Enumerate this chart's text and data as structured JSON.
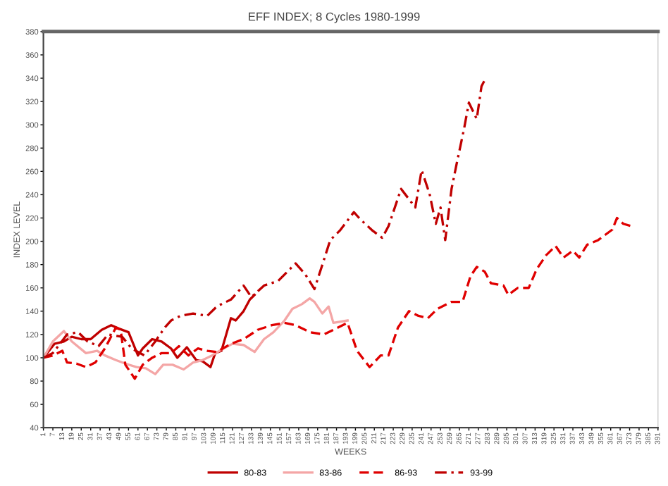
{
  "chart_data": {
    "type": "line",
    "title": "EFF INDEX; 8 Cycles 1980-1999",
    "xlabel": "WEEKS",
    "ylabel": "INDEX LEVEL",
    "xlim": [
      1,
      391
    ],
    "xticks": [
      1,
      7,
      13,
      19,
      25,
      31,
      37,
      43,
      49,
      55,
      61,
      67,
      73,
      79,
      85,
      91,
      97,
      103,
      109,
      115,
      121,
      127,
      133,
      139,
      145,
      151,
      157,
      163,
      169,
      175,
      181,
      187,
      193,
      199,
      205,
      211,
      217,
      223,
      229,
      235,
      241,
      247,
      253,
      259,
      265,
      271,
      277,
      283,
      289,
      295,
      301,
      307,
      313,
      319,
      325,
      331,
      337,
      343,
      349,
      355,
      361,
      367,
      373,
      379,
      385,
      391
    ],
    "ylim": [
      40,
      380
    ],
    "yticks": [
      40,
      60,
      80,
      100,
      120,
      140,
      160,
      180,
      200,
      220,
      240,
      260,
      280,
      300,
      320,
      340,
      360,
      380
    ],
    "grid": false,
    "legend": "bottom",
    "series": [
      {
        "name": "80-83",
        "color": "#c00000",
        "line_style": "solid",
        "x": [
          1,
          8,
          14,
          19,
          25,
          31,
          38,
          44,
          49,
          55,
          61,
          64,
          70,
          76,
          82,
          86,
          92,
          98,
          102,
          107,
          110,
          114,
          117,
          120,
          123,
          128,
          132,
          135
        ],
        "values": [
          100,
          112,
          114,
          118,
          116,
          116,
          124,
          128,
          125,
          122,
          102,
          108,
          116,
          114,
          108,
          100,
          109,
          98,
          97,
          92,
          104,
          106,
          120,
          134,
          132,
          140,
          150,
          154
        ]
      },
      {
        "name": "83-86",
        "color": "#f4a6a6",
        "line_style": "solid",
        "x": [
          1,
          7,
          14,
          19,
          28,
          35,
          40,
          47,
          53,
          60,
          66,
          72,
          77,
          83,
          90,
          96,
          102,
          108,
          114,
          121,
          128,
          135,
          141,
          147,
          154,
          159,
          165,
          170,
          173,
          178,
          182,
          185,
          194
        ],
        "values": [
          100,
          114,
          123,
          114,
          104,
          106,
          102,
          98,
          95,
          92,
          91,
          86,
          94,
          94,
          90,
          96,
          98,
          102,
          107,
          112,
          111,
          105,
          116,
          122,
          132,
          142,
          146,
          151,
          148,
          138,
          144,
          130,
          132
        ]
      },
      {
        "name": "86-93",
        "color": "#e00000",
        "line_style": "dashed",
        "x": [
          1,
          7,
          13,
          16,
          22,
          28,
          34,
          40,
          47,
          50,
          53,
          59,
          64,
          70,
          76,
          82,
          87,
          93,
          99,
          105,
          111,
          120,
          128,
          137,
          146,
          154,
          161,
          170,
          179,
          185,
          194,
          200,
          208,
          215,
          220,
          226,
          233,
          239,
          245,
          251,
          260,
          267,
          272,
          276,
          281,
          285,
          293,
          296,
          302,
          309,
          314,
          320,
          326,
          331,
          337,
          341,
          346,
          353,
          362,
          365,
          369,
          374
        ],
        "values": [
          100,
          102,
          106,
          96,
          95,
          92,
          96,
          108,
          126,
          124,
          94,
          82,
          94,
          100,
          104,
          104,
          110,
          102,
          108,
          106,
          105,
          112,
          116,
          124,
          128,
          130,
          128,
          122,
          120,
          124,
          130,
          106,
          92,
          102,
          102,
          126,
          140,
          136,
          134,
          142,
          148,
          148,
          170,
          178,
          174,
          164,
          162,
          154,
          160,
          160,
          176,
          188,
          196,
          186,
          192,
          186,
          197,
          201,
          210,
          220,
          215,
          213
        ]
      },
      {
        "name": "93-99",
        "color": "#c00000",
        "line_style": "dashdot",
        "x": [
          1,
          7,
          16,
          23,
          29,
          36,
          42,
          51,
          57,
          65,
          72,
          78,
          82,
          88,
          96,
          105,
          111,
          120,
          128,
          133,
          141,
          150,
          161,
          167,
          173,
          179,
          183,
          189,
          198,
          202,
          210,
          216,
          220,
          225,
          228,
          237,
          241,
          246,
          250,
          253,
          256,
          260,
          263,
          268,
          271,
          276,
          279,
          282
        ],
        "values": [
          100,
          104,
          120,
          122,
          114,
          110,
          120,
          118,
          108,
          102,
          114,
          126,
          132,
          136,
          138,
          136,
          144,
          150,
          162,
          152,
          162,
          166,
          181,
          172,
          159,
          184,
          201,
          209,
          225,
          219,
          209,
          203,
          213,
          233,
          245,
          229,
          261,
          241,
          215,
          229,
          201,
          245,
          265,
          297,
          319,
          305,
          333,
          341
        ]
      }
    ]
  }
}
